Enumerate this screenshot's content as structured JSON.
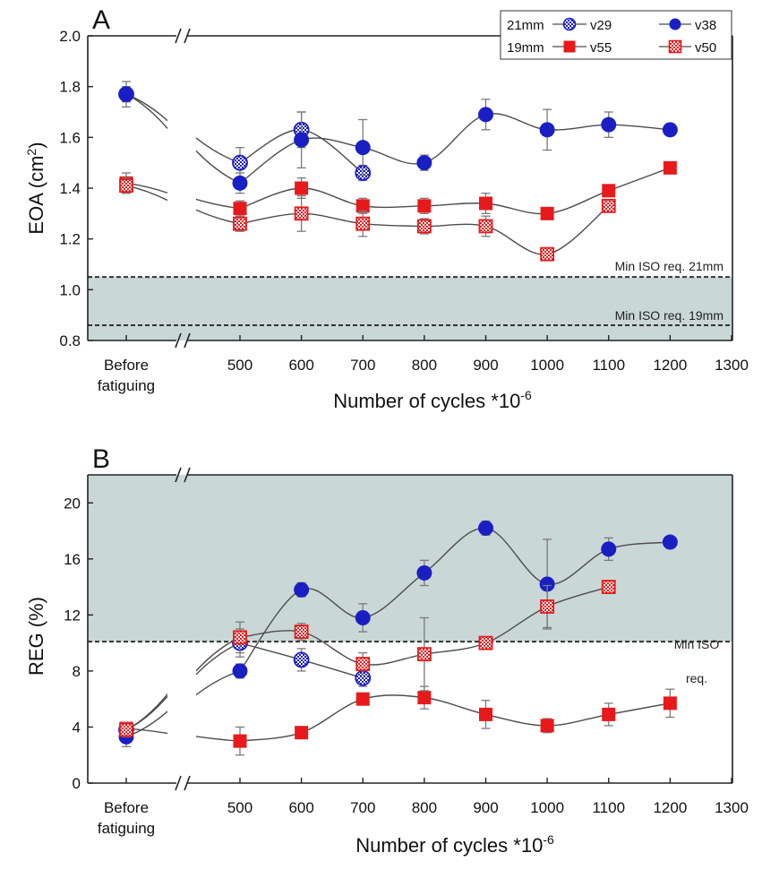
{
  "colors": {
    "blue": "#1a1fc4",
    "red": "#e8191b",
    "zone": "#c9d7d6",
    "line": "#4d4d4d",
    "errorbar": "#7a7a7a"
  },
  "chart_data": [
    {
      "panel": "A",
      "type": "line",
      "title": "",
      "ylabel": "EOA (cm2)",
      "ylabel_main": "EOA (cm",
      "ylabel_sup": "2",
      "ylabel_end": ")",
      "xlabel": "Number of cycles *10",
      "xlabel_sup": "-6",
      "x_categorical": "Before fatiguing",
      "x_categorical_lines": [
        "Before",
        "fatiguing"
      ],
      "x_ticks": [
        500,
        600,
        700,
        800,
        900,
        1000,
        1100,
        1200,
        1300
      ],
      "xlim": [
        450,
        1300
      ],
      "ylim": [
        0.8,
        2.0
      ],
      "y_ticks": [
        "0.8",
        "1.0",
        "1.2",
        "1.4",
        "1.6",
        "1.8",
        "2.0"
      ],
      "y_tick_values": [
        0.8,
        1.0,
        1.2,
        1.4,
        1.6,
        1.8,
        2.0
      ],
      "shaded_region": {
        "y_from": 0.8,
        "y_to": 1.05
      },
      "reference_lines": [
        {
          "y": 1.05,
          "label": "Min ISO req. 21mm"
        },
        {
          "y": 0.86,
          "label": "Min ISO req. 19mm"
        }
      ],
      "legend": {
        "placement": "top-right",
        "groups": [
          {
            "size": "21mm",
            "entries": [
              "v29",
              "v38"
            ]
          },
          {
            "size": "19mm",
            "entries": [
              "v55",
              "v50"
            ]
          }
        ]
      },
      "series": [
        {
          "name": "v29",
          "size": "21mm",
          "marker": "circle-hatched",
          "color": "blue",
          "before": 1.77,
          "before_err": 0.03,
          "x": [
            500,
            600,
            700
          ],
          "values": [
            1.5,
            1.63,
            1.46
          ],
          "errors": [
            0.06,
            0.07,
            0.03
          ]
        },
        {
          "name": "v38",
          "size": "21mm",
          "marker": "circle-filled",
          "color": "blue",
          "before": 1.77,
          "before_err": 0.05,
          "x": [
            500,
            600,
            700,
            800,
            900,
            1000,
            1100,
            1200
          ],
          "values": [
            1.42,
            1.59,
            1.56,
            1.5,
            1.69,
            1.63,
            1.65,
            1.63
          ],
          "errors": [
            0.04,
            0.11,
            0.11,
            0.03,
            0.06,
            0.08,
            0.05,
            0.02
          ]
        },
        {
          "name": "v55",
          "size": "19mm",
          "marker": "square-filled",
          "color": "red",
          "before": 1.42,
          "before_err": 0.04,
          "x": [
            500,
            600,
            700,
            800,
            900,
            1000,
            1100,
            1200
          ],
          "values": [
            1.32,
            1.4,
            1.33,
            1.33,
            1.34,
            1.3,
            1.39,
            1.48
          ],
          "errors": [
            0.03,
            0.04,
            0.03,
            0.03,
            0.04,
            0.02,
            0.02,
            0.02
          ]
        },
        {
          "name": "v50",
          "size": "19mm",
          "marker": "square-hatched",
          "color": "red",
          "before": 1.41,
          "before_err": 0.03,
          "x": [
            500,
            600,
            700,
            800,
            900,
            1000,
            1100
          ],
          "values": [
            1.26,
            1.3,
            1.26,
            1.25,
            1.25,
            1.14,
            1.33
          ],
          "errors": [
            0.03,
            0.07,
            0.05,
            0.03,
            0.04,
            0.02,
            0.02
          ]
        }
      ]
    },
    {
      "panel": "B",
      "type": "line",
      "title": "",
      "ylabel": "REG (%)",
      "xlabel": "Number of cycles *10",
      "xlabel_sup": "-6",
      "x_categorical": "Before fatiguing",
      "x_categorical_lines": [
        "Before",
        "fatiguing"
      ],
      "x_ticks": [
        500,
        600,
        700,
        800,
        900,
        1000,
        1100,
        1200,
        1300
      ],
      "xlim": [
        450,
        1300
      ],
      "ylim": [
        0,
        22
      ],
      "y_ticks": [
        "0",
        "4",
        "8",
        "12",
        "16",
        "20"
      ],
      "y_tick_values": [
        0,
        4,
        8,
        12,
        16,
        20
      ],
      "shaded_region": {
        "y_from": 10.1,
        "y_to": 22
      },
      "reference_lines": [
        {
          "y": 10.1,
          "label": "Min ISO req.",
          "label_lines": [
            "Min ISO",
            "req."
          ]
        }
      ],
      "series": [
        {
          "name": "v29",
          "size": "21mm",
          "marker": "circle-hatched",
          "color": "blue",
          "before": 3.8,
          "before_err": 0.5,
          "x": [
            500,
            600,
            700
          ],
          "values": [
            10.0,
            8.8,
            7.5
          ],
          "errors": [
            1.0,
            0.8,
            0.6
          ]
        },
        {
          "name": "v38",
          "size": "21mm",
          "marker": "circle-filled",
          "color": "blue",
          "before": 3.3,
          "before_err": 0.7,
          "x": [
            500,
            600,
            700,
            800,
            900,
            1000,
            1100,
            1200
          ],
          "values": [
            8.0,
            13.8,
            11.8,
            15.0,
            18.2,
            14.2,
            16.7,
            17.2
          ],
          "errors": [
            0.5,
            0.5,
            1.0,
            0.9,
            0.5,
            3.2,
            0.8,
            0.3
          ]
        },
        {
          "name": "v55",
          "size": "19mm",
          "marker": "square-filled",
          "color": "red",
          "before": 3.9,
          "before_err": 0.4,
          "x": [
            500,
            600,
            700,
            800,
            900,
            1000,
            1100,
            1200
          ],
          "values": [
            3.0,
            3.6,
            6.0,
            6.1,
            4.9,
            4.1,
            4.9,
            5.7
          ],
          "errors": [
            1.0,
            0.3,
            0.4,
            0.8,
            1.0,
            0.5,
            0.8,
            1.0
          ]
        },
        {
          "name": "v50",
          "size": "19mm",
          "marker": "square-hatched",
          "color": "red",
          "before": 3.8,
          "before_err": 0.5,
          "x": [
            500,
            600,
            700,
            800,
            900,
            1000,
            1100
          ],
          "values": [
            10.4,
            10.8,
            8.5,
            9.2,
            10.0,
            12.6,
            14.0
          ],
          "errors": [
            1.1,
            0.6,
            0.8,
            2.6,
            0.4,
            1.5,
            0.3
          ]
        }
      ]
    }
  ]
}
